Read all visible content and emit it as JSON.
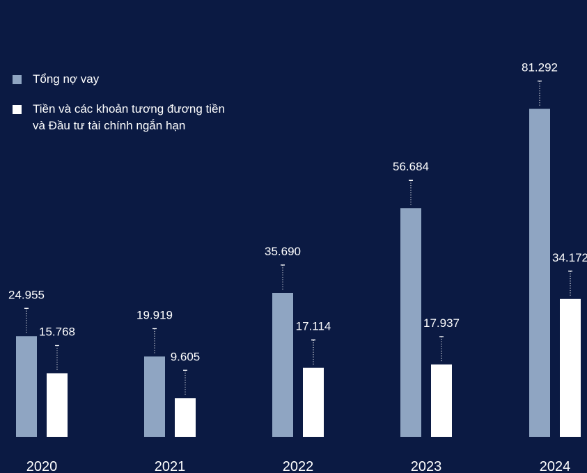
{
  "colors": {
    "background": "#0b1a43",
    "total_debt": "#8fa5c2",
    "cash": "#ffffff",
    "text": "#ffffff"
  },
  "chart_data": {
    "type": "bar",
    "categories": [
      "2020",
      "2021",
      "2022",
      "2023",
      "2024"
    ],
    "series": [
      {
        "name": "Tổng nợ vay",
        "values": [
          24955,
          19919,
          35690,
          56684,
          81292
        ],
        "labels": [
          "24.955",
          "19.919",
          "35.690",
          "56.684",
          "81.292"
        ],
        "color": "#8fa5c2"
      },
      {
        "name": "Tiền và các khoản tương đương tiền\nvà Đầu tư tài chính ngắn hạn",
        "values": [
          15768,
          9605,
          17114,
          17937,
          34172
        ],
        "labels": [
          "15.768",
          "9.605",
          "17.114",
          "17.937",
          "34.172"
        ],
        "color": "#ffffff"
      }
    ],
    "legend_position": "top-left",
    "grid": false,
    "title": "",
    "xlabel": "",
    "ylabel": ""
  }
}
